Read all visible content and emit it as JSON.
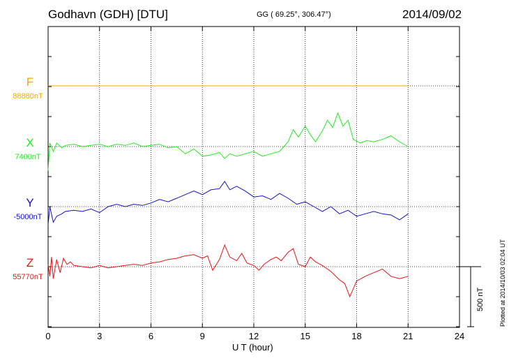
{
  "header": {
    "station": "Godhavn (GDH)  [DTU]",
    "coords": "GG ( 69.25°, 306.47°)",
    "date": "2014/09/02"
  },
  "footer": {
    "plotted": "Plotted at 2014/10/03 02:04 UT",
    "scale_label": "500 nT"
  },
  "chart_data": {
    "type": "line",
    "title": "Godhavn (GDH)  [DTU]",
    "xlabel": "U T (hour)",
    "ylabel": "",
    "xlim": [
      0,
      24
    ],
    "x_ticks": [
      "0",
      "3",
      "6",
      "9",
      "12",
      "15",
      "18",
      "21",
      "24"
    ],
    "grid": true,
    "scale_bar_nT": 500,
    "series": [
      {
        "name": "F",
        "baseline_label": "88880nT",
        "baseline_nT": 88880,
        "color": "#ffa500",
        "x": [
          0,
          21
        ],
        "offset_nT": [
          0,
          0
        ]
      },
      {
        "name": "X",
        "baseline_label": "7400nT",
        "baseline_nT": 7400,
        "color": "#22ee22",
        "x": [
          0,
          0.1,
          0.3,
          0.5,
          0.8,
          1,
          1.5,
          2,
          2.5,
          3,
          3.5,
          4,
          4.5,
          5,
          5.5,
          6,
          6.5,
          7,
          7.5,
          8,
          8.5,
          9,
          9.5,
          10,
          10.3,
          10.6,
          11,
          11.5,
          12,
          12.5,
          13,
          13.5,
          14,
          14.3,
          14.6,
          15,
          15.3,
          15.6,
          16,
          16.3,
          16.6,
          16.9,
          17.2,
          17.5,
          17.8,
          18.2,
          18.6,
          19,
          19.5,
          20,
          20.5,
          21
        ],
        "offset_nT": [
          -200,
          30,
          -40,
          30,
          -10,
          10,
          20,
          0,
          10,
          20,
          0,
          20,
          10,
          30,
          0,
          10,
          20,
          -10,
          0,
          -60,
          -20,
          -80,
          -70,
          -50,
          -100,
          -60,
          -80,
          -60,
          -40,
          -80,
          -60,
          -40,
          40,
          140,
          80,
          170,
          100,
          40,
          130,
          220,
          160,
          280,
          170,
          220,
          60,
          30,
          50,
          40,
          60,
          90,
          40,
          0
        ]
      },
      {
        "name": "Y",
        "baseline_label": "-5000nT",
        "baseline_nT": -5000,
        "color": "#1111cc",
        "x": [
          0,
          0.1,
          0.3,
          0.5,
          0.8,
          1,
          1.5,
          2,
          2.5,
          3,
          3.5,
          4,
          4.5,
          5,
          5.5,
          6,
          6.5,
          7,
          7.5,
          8,
          8.5,
          9,
          9.5,
          10,
          10.3,
          10.6,
          11,
          11.5,
          12,
          12.5,
          13,
          13.5,
          14,
          14.5,
          15,
          15.5,
          16,
          16.5,
          17,
          17.5,
          18,
          18.5,
          19,
          19.5,
          20,
          20.5,
          21
        ],
        "offset_nT": [
          -150,
          0,
          -130,
          -80,
          -60,
          -40,
          -30,
          -40,
          -20,
          -50,
          0,
          20,
          0,
          20,
          10,
          30,
          60,
          40,
          70,
          100,
          130,
          100,
          140,
          150,
          210,
          140,
          170,
          130,
          80,
          90,
          60,
          110,
          70,
          20,
          40,
          0,
          -40,
          0,
          -60,
          -30,
          -80,
          -60,
          -40,
          -60,
          -70,
          -110,
          -60
        ]
      },
      {
        "name": "Z",
        "baseline_label": "55770nT",
        "baseline_nT": 55770,
        "color": "#ee1111",
        "x": [
          0,
          0.1,
          0.2,
          0.3,
          0.5,
          0.7,
          0.9,
          1.1,
          1.3,
          1.5,
          2,
          2.5,
          3,
          3.5,
          4,
          4.5,
          5,
          5.5,
          6,
          6.5,
          7,
          7.5,
          8,
          8.5,
          9,
          9.3,
          9.6,
          10,
          10.3,
          10.6,
          11,
          11.3,
          11.6,
          12,
          12.3,
          12.6,
          13,
          13.3,
          13.6,
          14,
          14.3,
          14.6,
          15,
          15.3,
          15.6,
          16,
          16.5,
          17,
          17.3,
          17.6,
          18,
          18.5,
          19,
          19.5,
          20,
          20.5,
          21
        ],
        "offset_nT": [
          20,
          -80,
          80,
          -100,
          60,
          -50,
          70,
          20,
          40,
          10,
          0,
          -10,
          10,
          -10,
          0,
          10,
          20,
          10,
          30,
          40,
          60,
          70,
          90,
          100,
          70,
          90,
          -30,
          60,
          180,
          80,
          50,
          110,
          30,
          10,
          -30,
          20,
          60,
          80,
          50,
          120,
          150,
          20,
          0,
          80,
          40,
          10,
          -40,
          -110,
          -140,
          -250,
          -120,
          -80,
          -50,
          -20,
          -80,
          -100,
          -80
        ]
      }
    ]
  }
}
